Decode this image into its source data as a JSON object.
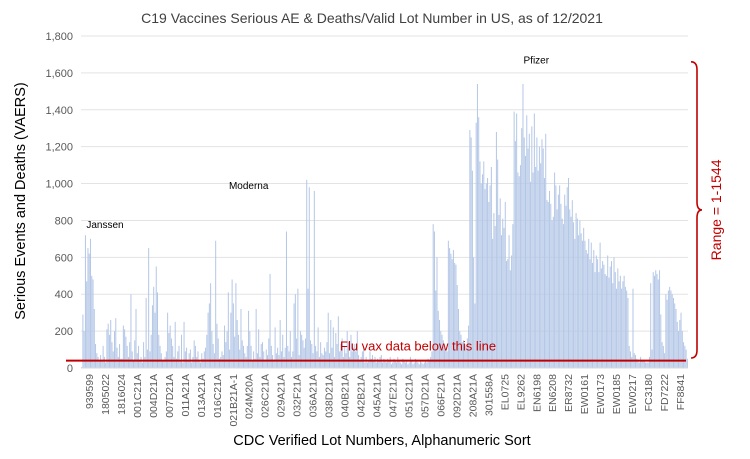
{
  "chart_data": {
    "type": "bar",
    "title": "C19 Vaccines Serious AE & Deaths/Valid Lot Number in US, as of 12/2021",
    "xlabel": "CDC Verified Lot Numbers, Alphanumeric Sort",
    "ylabel": "Serious Events and Deaths (VAERS)",
    "ylim": [
      0,
      1800
    ],
    "yticks": [
      "0",
      "200",
      "400",
      "600",
      "800",
      "1,000",
      "1,200",
      "1,400",
      "1,600",
      "1,800"
    ],
    "grid": true,
    "legend": "none",
    "bar_color": "#b4c7e7",
    "x_tick_labels": [
      "939599",
      "1805022",
      "1816024",
      "001C21A",
      "004D21A",
      "007D21A",
      "011A21A",
      "013A21A",
      "016C21A",
      "021B21A-1",
      "024M20A",
      "026C21A",
      "029A21A",
      "032F21A",
      "036A21A",
      "038D21A",
      "040B21A",
      "042B21A",
      "045A21A",
      "047E21A",
      "051C21A",
      "057D21A",
      "066F21A",
      "092D21A",
      "208A21A",
      "301558A",
      "EL0725",
      "EL9262",
      "EN6198",
      "EN6208",
      "ER8732",
      "EW0161",
      "EW0173",
      "EW0185",
      "EW0217",
      "FC3180",
      "FD7222",
      "FF8841"
    ],
    "group_labels": [
      {
        "text": "Janssen",
        "x_index": 1,
        "y": 760
      },
      {
        "text": "Moderna",
        "x_index": 10,
        "y": 970
      },
      {
        "text": "Pfizer",
        "x_index": 28,
        "y": 1650
      }
    ],
    "reference_line": {
      "label": "Flu vax data below this line",
      "y": 40,
      "color": "#c00000"
    },
    "range_annotation": {
      "label": "Range = 1-1544",
      "y_min": 0,
      "y_max": 1660,
      "color": "#c00000"
    },
    "values_by_lot_group": [
      [
        5,
        290,
        200,
        720,
        470,
        650,
        620,
        700,
        500,
        480,
        320,
        130,
        80,
        60,
        40,
        70,
        40
      ],
      [
        120,
        60,
        30,
        210,
        240,
        180,
        260,
        140,
        90,
        200,
        270,
        110,
        60,
        130,
        50,
        50
      ],
      [
        230,
        210,
        170,
        120,
        60,
        140,
        400,
        90,
        40,
        150,
        320,
        80,
        120,
        40,
        60,
        30
      ],
      [
        140,
        60,
        380,
        100,
        650,
        90,
        180,
        340,
        440,
        300,
        550,
        410,
        180,
        120,
        80,
        40
      ],
      [
        40,
        60,
        90,
        300,
        190,
        230,
        160,
        120,
        60,
        250,
        50,
        90,
        120,
        40,
        180,
        30
      ],
      [
        250,
        90,
        110,
        40,
        80,
        100,
        30,
        60,
        150,
        120,
        60,
        90,
        40,
        30,
        80,
        50
      ],
      [
        90,
        110,
        180,
        300,
        350,
        460,
        200,
        130,
        80,
        690,
        240,
        160,
        50,
        60,
        90,
        70
      ],
      [
        230,
        140,
        200,
        410,
        100,
        300,
        480,
        350,
        170,
        460,
        260,
        180,
        100,
        320,
        150,
        120
      ],
      [
        80,
        60,
        120,
        310,
        200,
        120,
        40,
        90,
        50,
        320,
        80,
        210,
        60,
        130,
        140,
        90
      ],
      [
        40,
        100,
        70,
        160,
        510,
        120,
        70,
        40,
        220,
        80,
        110,
        70,
        260,
        90,
        180,
        60
      ],
      [
        110,
        740,
        120,
        90,
        200,
        60,
        90,
        350,
        400,
        160,
        430,
        70,
        200,
        180,
        150,
        110
      ],
      [
        160,
        1020,
        430,
        980,
        150,
        130,
        80,
        960,
        120,
        90,
        220,
        60,
        140,
        80,
        70,
        110
      ],
      [
        90,
        140,
        300,
        80,
        260,
        110,
        220,
        60,
        190,
        130,
        280,
        90,
        130,
        160,
        60,
        120
      ],
      [
        80,
        200,
        140,
        60,
        180,
        90,
        110,
        130,
        90,
        200,
        70,
        40,
        60,
        90,
        110,
        30
      ],
      [
        60,
        30,
        40,
        90,
        50,
        70,
        40,
        60,
        30,
        50,
        40,
        60,
        70,
        30,
        50,
        40
      ],
      [
        30,
        50,
        40,
        60,
        20,
        30,
        50,
        40,
        30,
        60,
        40,
        30,
        20,
        50,
        40,
        30
      ],
      [
        40,
        20,
        30,
        60,
        40,
        20,
        30,
        50,
        40,
        30,
        20,
        40,
        30,
        20,
        30,
        40
      ],
      [
        30,
        50,
        40,
        60,
        90,
        780,
        740,
        420,
        600,
        310,
        260,
        200,
        180,
        150,
        120,
        100
      ],
      [
        90,
        690,
        650,
        620,
        590,
        640,
        570,
        560,
        450,
        320,
        200,
        180,
        140,
        150,
        130,
        120
      ],
      [
        160,
        230,
        1290,
        1250,
        1070,
        600,
        350,
        1330,
        1540,
        1360,
        1120,
        1000,
        1050,
        1120,
        970
      ],
      [
        1000,
        1030,
        900,
        990,
        1090,
        700,
        840,
        770,
        1280,
        1130,
        830,
        920,
        720,
        810,
        760,
        900
      ],
      [
        580,
        590,
        720,
        530,
        610,
        780,
        1390,
        1230,
        1380,
        1060,
        1040,
        1100,
        1300,
        1540,
        1250,
        1150
      ],
      [
        1370,
        1190,
        1270,
        1010,
        1310,
        1060,
        1380,
        1090,
        1250,
        1070,
        1200,
        1110,
        1240,
        1190,
        1030,
        1270
      ],
      [
        910,
        900,
        960,
        890,
        800,
        820,
        1060,
        990,
        860,
        940,
        990,
        890,
        810,
        780,
        940,
        880
      ],
      [
        980,
        1030,
        860,
        820,
        910,
        790,
        700,
        840,
        810,
        720,
        800,
        730,
        690,
        760,
        690,
        640
      ],
      [
        620,
        700,
        590,
        680,
        570,
        640,
        520,
        610,
        590,
        520,
        680,
        540,
        580,
        560,
        510,
        500
      ],
      [
        610,
        490,
        550,
        580,
        460,
        600,
        520,
        430,
        540,
        470,
        500,
        430,
        470,
        500,
        440,
        420
      ],
      [
        380,
        120,
        90,
        60,
        430,
        80,
        70,
        50,
        40,
        30,
        60,
        40,
        40,
        40,
        30,
        30
      ],
      [
        30,
        60,
        460,
        100,
        520,
        500,
        530,
        510,
        480,
        530,
        290,
        140,
        120,
        80,
        400,
        370
      ],
      [
        420,
        440,
        420,
        400,
        380,
        350,
        320,
        250,
        200,
        260,
        300,
        200,
        140,
        120,
        100,
        50
      ]
    ]
  }
}
